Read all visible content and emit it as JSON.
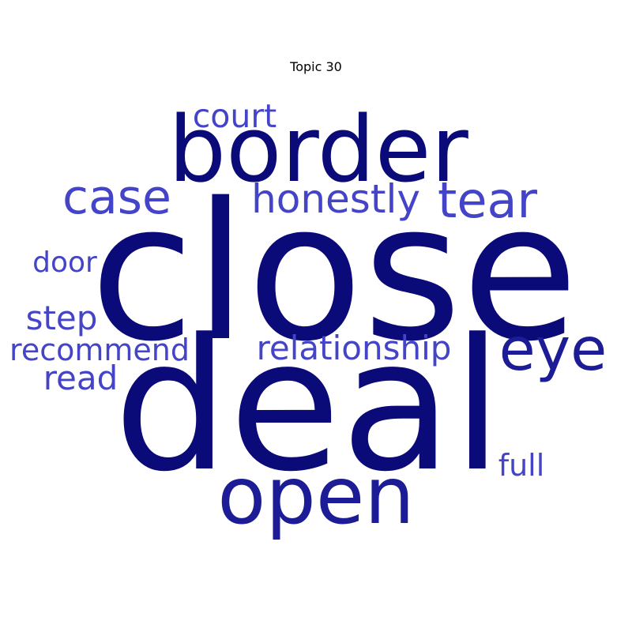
{
  "title": "Topic 30",
  "colors": {
    "dark": "#0a0a78",
    "mid": "#1c1c96",
    "light": "#4444c8"
  },
  "words": [
    {
      "text": "close",
      "tone": "dark"
    },
    {
      "text": "deal",
      "tone": "dark"
    },
    {
      "text": "border",
      "tone": "dark"
    },
    {
      "text": "open",
      "tone": "mid"
    },
    {
      "text": "eye",
      "tone": "mid"
    },
    {
      "text": "tear",
      "tone": "light"
    },
    {
      "text": "case",
      "tone": "light"
    },
    {
      "text": "honestly",
      "tone": "light"
    },
    {
      "text": "court",
      "tone": "light"
    },
    {
      "text": "relationship",
      "tone": "light"
    },
    {
      "text": "recommend",
      "tone": "light"
    },
    {
      "text": "step",
      "tone": "light"
    },
    {
      "text": "read",
      "tone": "light"
    },
    {
      "text": "door",
      "tone": "light"
    },
    {
      "text": "full",
      "tone": "light"
    }
  ]
}
